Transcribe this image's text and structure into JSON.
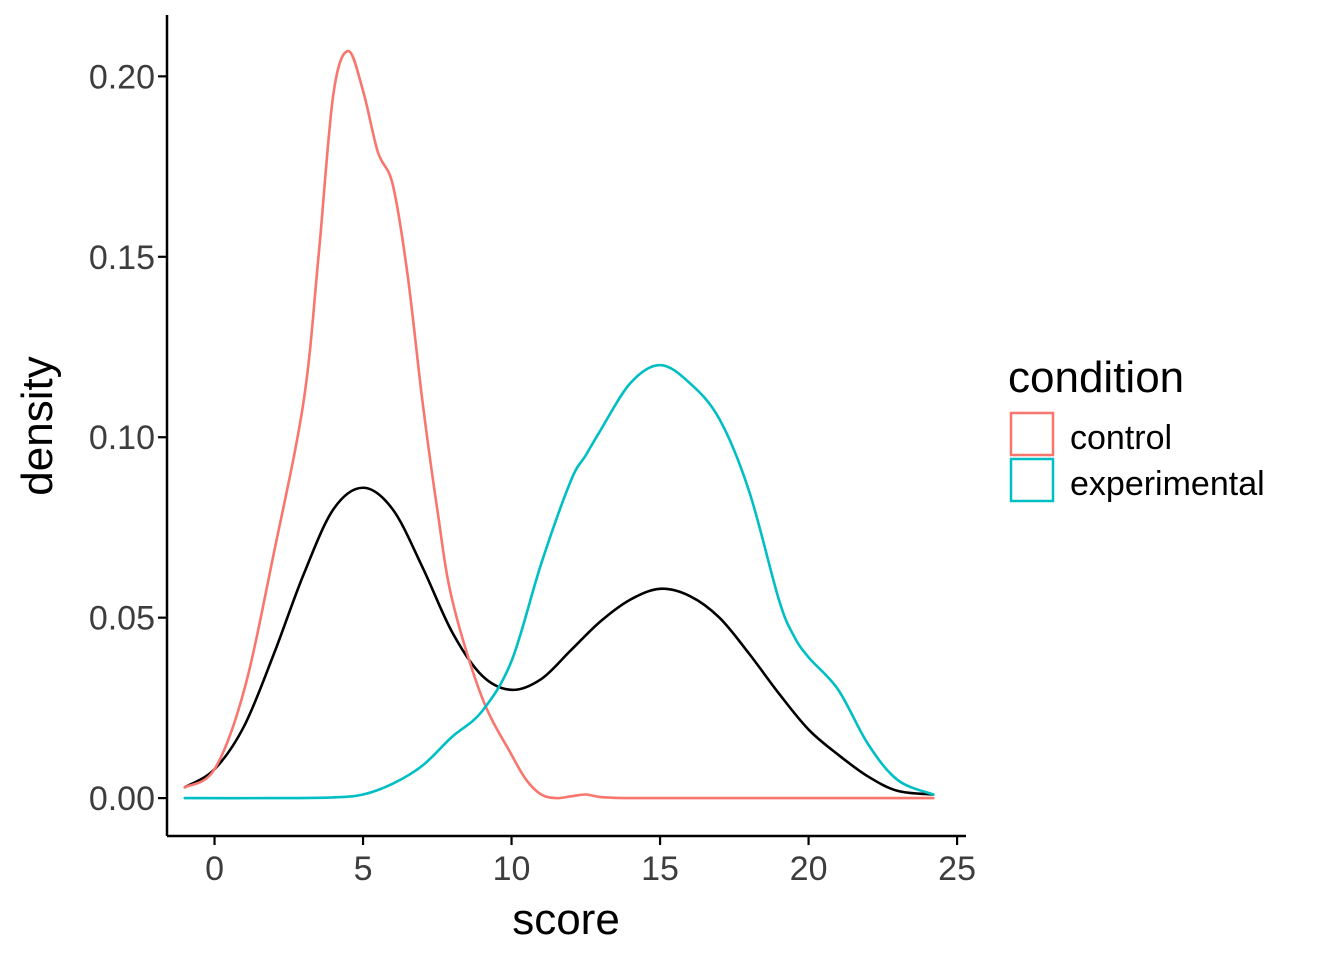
{
  "chart_data": {
    "type": "line",
    "xlabel": "score",
    "ylabel": "density",
    "xlim": [
      -1.6,
      25.3
    ],
    "ylim": [
      -0.0105,
      0.217
    ],
    "x_ticks": [
      0,
      5,
      10,
      15,
      20,
      25
    ],
    "x_tick_labels": [
      "0",
      "5",
      "10",
      "15",
      "20",
      "25"
    ],
    "y_ticks": [
      0,
      0.05,
      0.1,
      0.15,
      0.2
    ],
    "y_tick_labels": [
      "0.00",
      "0.05",
      "0.10",
      "0.15",
      "0.20"
    ],
    "grid": false,
    "legend": {
      "title": "condition",
      "placement": "right",
      "entries": [
        {
          "label": "control",
          "color": "#F8766D"
        },
        {
          "label": "experimental",
          "color": "#00BFC4"
        }
      ]
    },
    "series": [
      {
        "name": "control",
        "color": "#F8766D",
        "x": [
          -1.0,
          0.0,
          1.0,
          2.0,
          3.0,
          3.5,
          4.0,
          4.5,
          5.0,
          5.5,
          6.0,
          6.5,
          7.0,
          7.5,
          8.0,
          9.0,
          10.0,
          10.5,
          11.0,
          11.5,
          12.0,
          12.5,
          13.0,
          14.0,
          16.0,
          20.0,
          24.2
        ],
        "y": [
          0.003,
          0.008,
          0.03,
          0.068,
          0.11,
          0.15,
          0.195,
          0.207,
          0.196,
          0.179,
          0.17,
          0.145,
          0.11,
          0.08,
          0.055,
          0.028,
          0.012,
          0.005,
          0.001,
          0.0,
          0.0005,
          0.001,
          0.0003,
          0.0,
          0.0,
          0.0,
          0.0
        ]
      },
      {
        "name": "experimental",
        "color": "#00BFC4",
        "x": [
          -1.0,
          2.0,
          4.0,
          5.0,
          6.0,
          7.0,
          8.0,
          9.0,
          10.0,
          11.0,
          12.0,
          12.5,
          13.0,
          14.0,
          15.0,
          16.0,
          17.0,
          18.0,
          19.0,
          19.5,
          20.0,
          21.0,
          22.0,
          23.0,
          24.2
        ],
        "y": [
          0.0,
          0.0,
          0.0002,
          0.001,
          0.004,
          0.009,
          0.017,
          0.024,
          0.038,
          0.065,
          0.088,
          0.095,
          0.102,
          0.115,
          0.12,
          0.115,
          0.105,
          0.085,
          0.055,
          0.045,
          0.039,
          0.03,
          0.015,
          0.005,
          0.001
        ]
      },
      {
        "color": "#000000",
        "x": [
          -1.0,
          0.0,
          1.0,
          2.0,
          3.0,
          4.0,
          5.0,
          6.0,
          7.0,
          8.0,
          9.0,
          10.0,
          11.0,
          12.0,
          13.0,
          14.0,
          15.0,
          16.0,
          17.0,
          18.0,
          19.0,
          20.0,
          21.0,
          22.0,
          23.0,
          24.2
        ],
        "y": [
          0.003,
          0.008,
          0.02,
          0.04,
          0.062,
          0.08,
          0.086,
          0.08,
          0.064,
          0.046,
          0.034,
          0.03,
          0.033,
          0.041,
          0.049,
          0.055,
          0.058,
          0.056,
          0.05,
          0.04,
          0.029,
          0.019,
          0.012,
          0.006,
          0.002,
          0.001
        ]
      }
    ]
  }
}
